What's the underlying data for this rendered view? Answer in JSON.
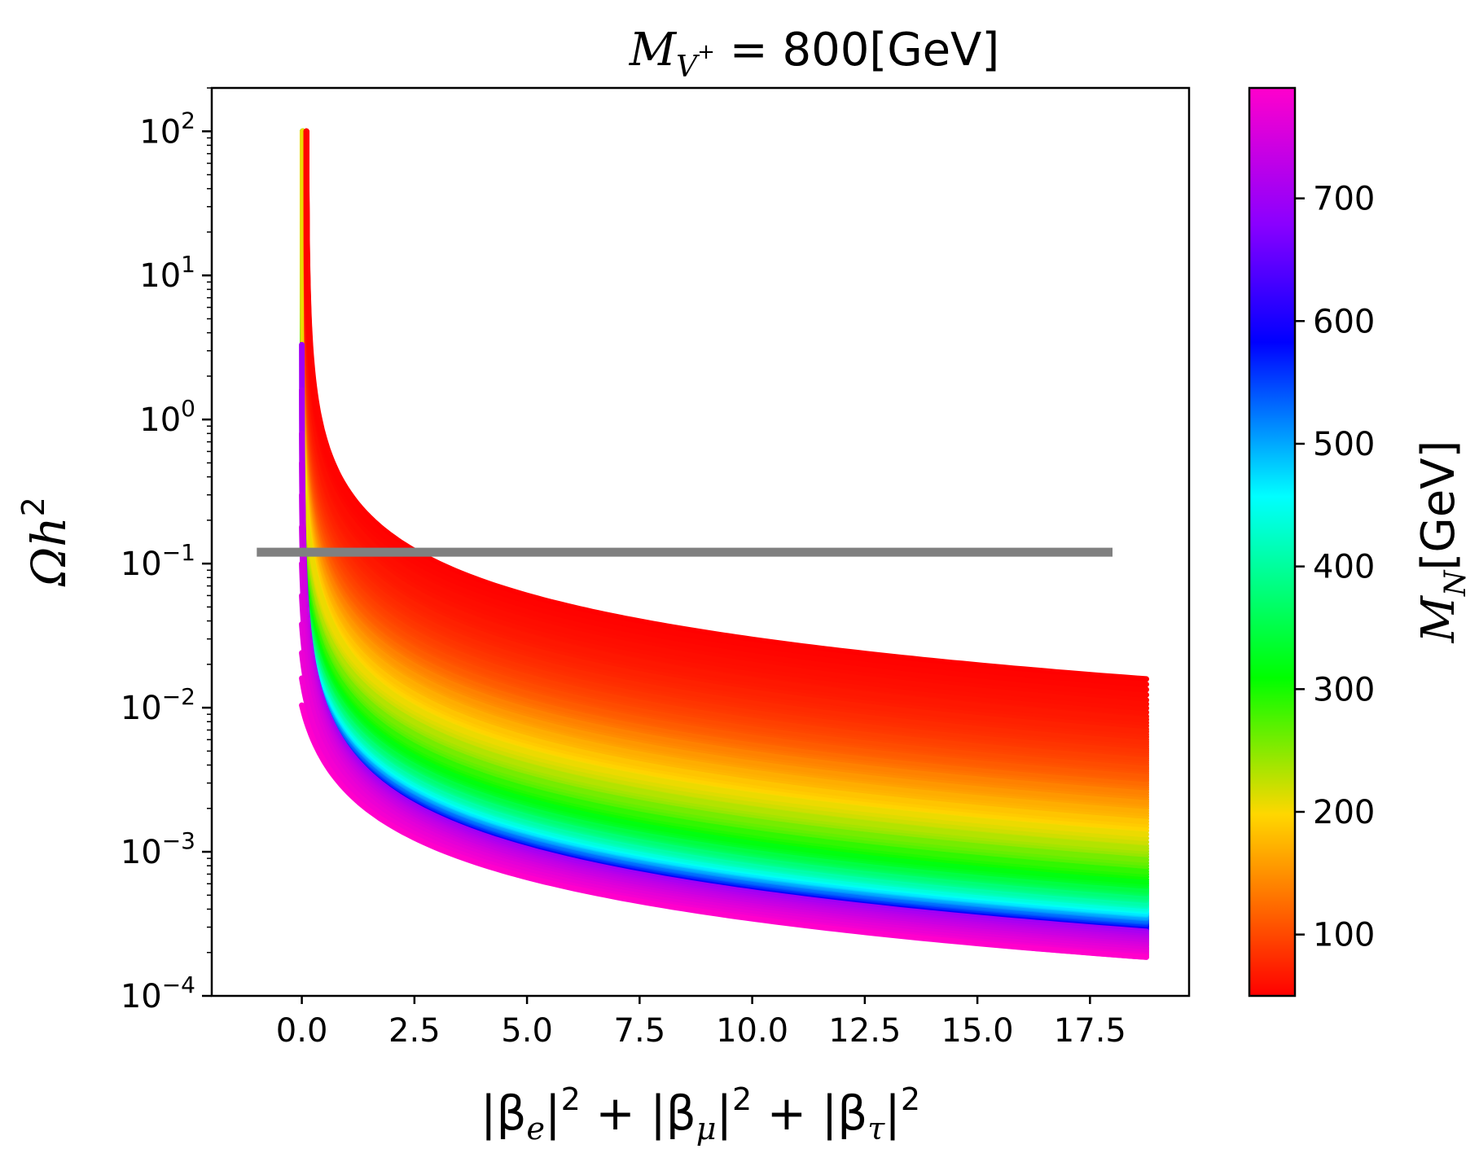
{
  "chart_data": {
    "type": "line",
    "title": "M_{V+} = 800[GeV]",
    "title_parts": {
      "symbol": "M",
      "subscript": "V",
      "superscript": "+",
      "rest": " = 800[GeV]"
    },
    "xlabel": "|β_e|² + |β_μ|² + |β_τ|²",
    "xlabel_parts": [
      "|β",
      "e",
      "|",
      "2",
      " + |β",
      "μ",
      "|",
      "2",
      " + |β",
      "τ",
      "|",
      "2"
    ],
    "ylabel": "Ωh²",
    "ylabel_parts": {
      "base": "Ωh",
      "sup": "2"
    },
    "xlim": [
      -2.0,
      19.7
    ],
    "ylim": [
      0.0001,
      200
    ],
    "yscale": "log",
    "x_ticks": [
      0.0,
      2.5,
      5.0,
      7.5,
      10.0,
      12.5,
      15.0,
      17.5
    ],
    "x_tick_labels": [
      "0.0",
      "2.5",
      "5.0",
      "7.5",
      "10.0",
      "12.5",
      "15.0",
      "17.5"
    ],
    "y_ticks": [
      0.0001,
      0.001,
      0.01,
      0.1,
      1,
      10,
      100
    ],
    "y_tick_labels": [
      {
        "base": "10",
        "exp": "−4"
      },
      {
        "base": "10",
        "exp": "−3"
      },
      {
        "base": "10",
        "exp": "−2"
      },
      {
        "base": "10",
        "exp": "−1"
      },
      {
        "base": "10",
        "exp": "0"
      },
      {
        "base": "10",
        "exp": "1"
      },
      {
        "base": "10",
        "exp": "2"
      }
    ],
    "reference_line": {
      "y": 0.12,
      "x_range": [
        -1.0,
        18.0
      ],
      "color": "#808080"
    },
    "curves": {
      "description": "Family of curves Ωh² ∝ 1/x for varying M_N, each ending at x = 18.75",
      "x_end": 18.75,
      "ymax": 100,
      "series": [
        {
          "mn": 50,
          "y_end": 0.0158
        },
        {
          "mn": 57,
          "y_end": 0.0113
        },
        {
          "mn": 64,
          "y_end": 0.0087
        },
        {
          "mn": 71,
          "y_end": 0.0071
        },
        {
          "mn": 78,
          "y_end": 0.006
        },
        {
          "mn": 85,
          "y_end": 0.0052
        },
        {
          "mn": 92,
          "y_end": 0.0046
        },
        {
          "mn": 100,
          "y_end": 0.004
        },
        {
          "mn": 110,
          "y_end": 0.0035
        },
        {
          "mn": 120,
          "y_end": 0.0031
        },
        {
          "mn": 135,
          "y_end": 0.0027
        },
        {
          "mn": 150,
          "y_end": 0.0023
        },
        {
          "mn": 165,
          "y_end": 0.002
        },
        {
          "mn": 180,
          "y_end": 0.0017
        },
        {
          "mn": 200,
          "y_end": 0.0014
        },
        {
          "mn": 225,
          "y_end": 0.0011
        },
        {
          "mn": 250,
          "y_end": 0.00092
        },
        {
          "mn": 280,
          "y_end": 0.00076
        },
        {
          "mn": 310,
          "y_end": 0.00064
        },
        {
          "mn": 340,
          "y_end": 0.00056
        },
        {
          "mn": 370,
          "y_end": 0.0005
        },
        {
          "mn": 400,
          "y_end": 0.00045
        },
        {
          "mn": 430,
          "y_end": 0.00041
        },
        {
          "mn": 460,
          "y_end": 0.00038
        },
        {
          "mn": 490,
          "y_end": 0.00036
        },
        {
          "mn": 520,
          "y_end": 0.00034
        },
        {
          "mn": 550,
          "y_end": 0.00032
        },
        {
          "mn": 580,
          "y_end": 0.00031
        },
        {
          "mn": 610,
          "y_end": 0.0003
        },
        {
          "mn": 640,
          "y_end": 0.00029
        },
        {
          "mn": 670,
          "y_end": 0.000285
        },
        {
          "mn": 700,
          "y_end": 0.00028
        },
        {
          "mn": 730,
          "y_end": 0.000272
        },
        {
          "mn": 745,
          "y_end": 0.000262
        },
        {
          "mn": 755,
          "y_end": 0.000252
        },
        {
          "mn": 762,
          "y_end": 0.000243
        },
        {
          "mn": 770,
          "y_end": 0.000233
        },
        {
          "mn": 777,
          "y_end": 0.000225
        },
        {
          "mn": 790,
          "y_end": 0.000186
        }
      ],
      "low_start_series": [
        {
          "mn": 700,
          "y_start": 3.3
        },
        {
          "mn": 710,
          "y_start": 1.6
        },
        {
          "mn": 720,
          "y_start": 0.8
        },
        {
          "mn": 728,
          "y_start": 0.5
        },
        {
          "mn": 735,
          "y_start": 0.3
        },
        {
          "mn": 742,
          "y_start": 0.18
        },
        {
          "mn": 750,
          "y_start": 0.1
        },
        {
          "mn": 757,
          "y_start": 0.06
        },
        {
          "mn": 764,
          "y_start": 0.038
        },
        {
          "mn": 772,
          "y_start": 0.024
        },
        {
          "mn": 780,
          "y_start": 0.016
        },
        {
          "mn": 790,
          "y_start": 0.0104
        }
      ]
    },
    "colorbar": {
      "label_parts": {
        "symbol": "M",
        "subscript": "N",
        "rest": "[GeV]"
      },
      "label": "M_N[GeV]",
      "range": [
        50,
        790
      ],
      "ticks": [
        100,
        200,
        300,
        400,
        500,
        600,
        700
      ],
      "tick_labels": [
        "100",
        "200",
        "300",
        "400",
        "500",
        "600",
        "700"
      ],
      "colormap": "gist_rainbow_r"
    }
  }
}
